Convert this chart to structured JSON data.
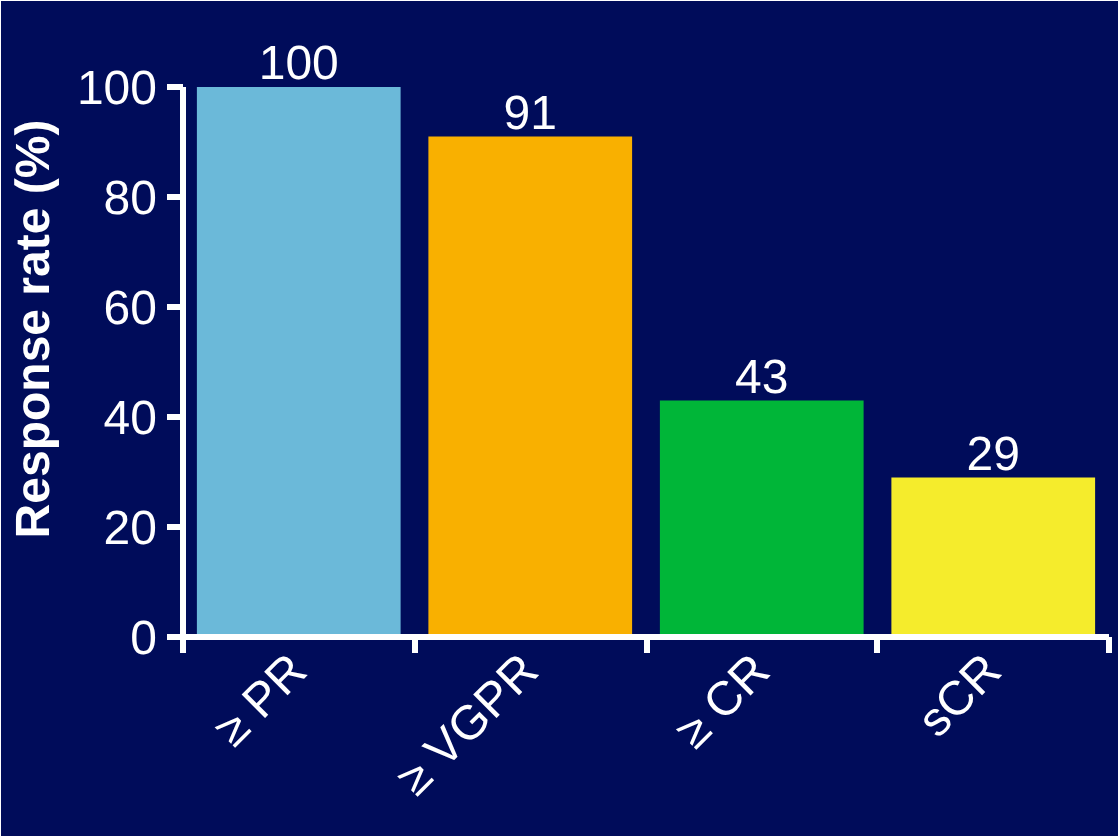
{
  "chart_data": {
    "type": "bar",
    "ylabel": "Response rate (%)",
    "categories": [
      "≥ PR",
      "≥ VGPR",
      "≥ CR",
      "sCR"
    ],
    "values": [
      100,
      91,
      43,
      29
    ],
    "colors": [
      "#6bb9d9",
      "#f9b000",
      "#00b638",
      "#f5ec2c"
    ],
    "ylim": [
      0,
      100
    ],
    "yticks": [
      0,
      20,
      40,
      60,
      80,
      100
    ],
    "data_labels": true,
    "grid": false
  }
}
